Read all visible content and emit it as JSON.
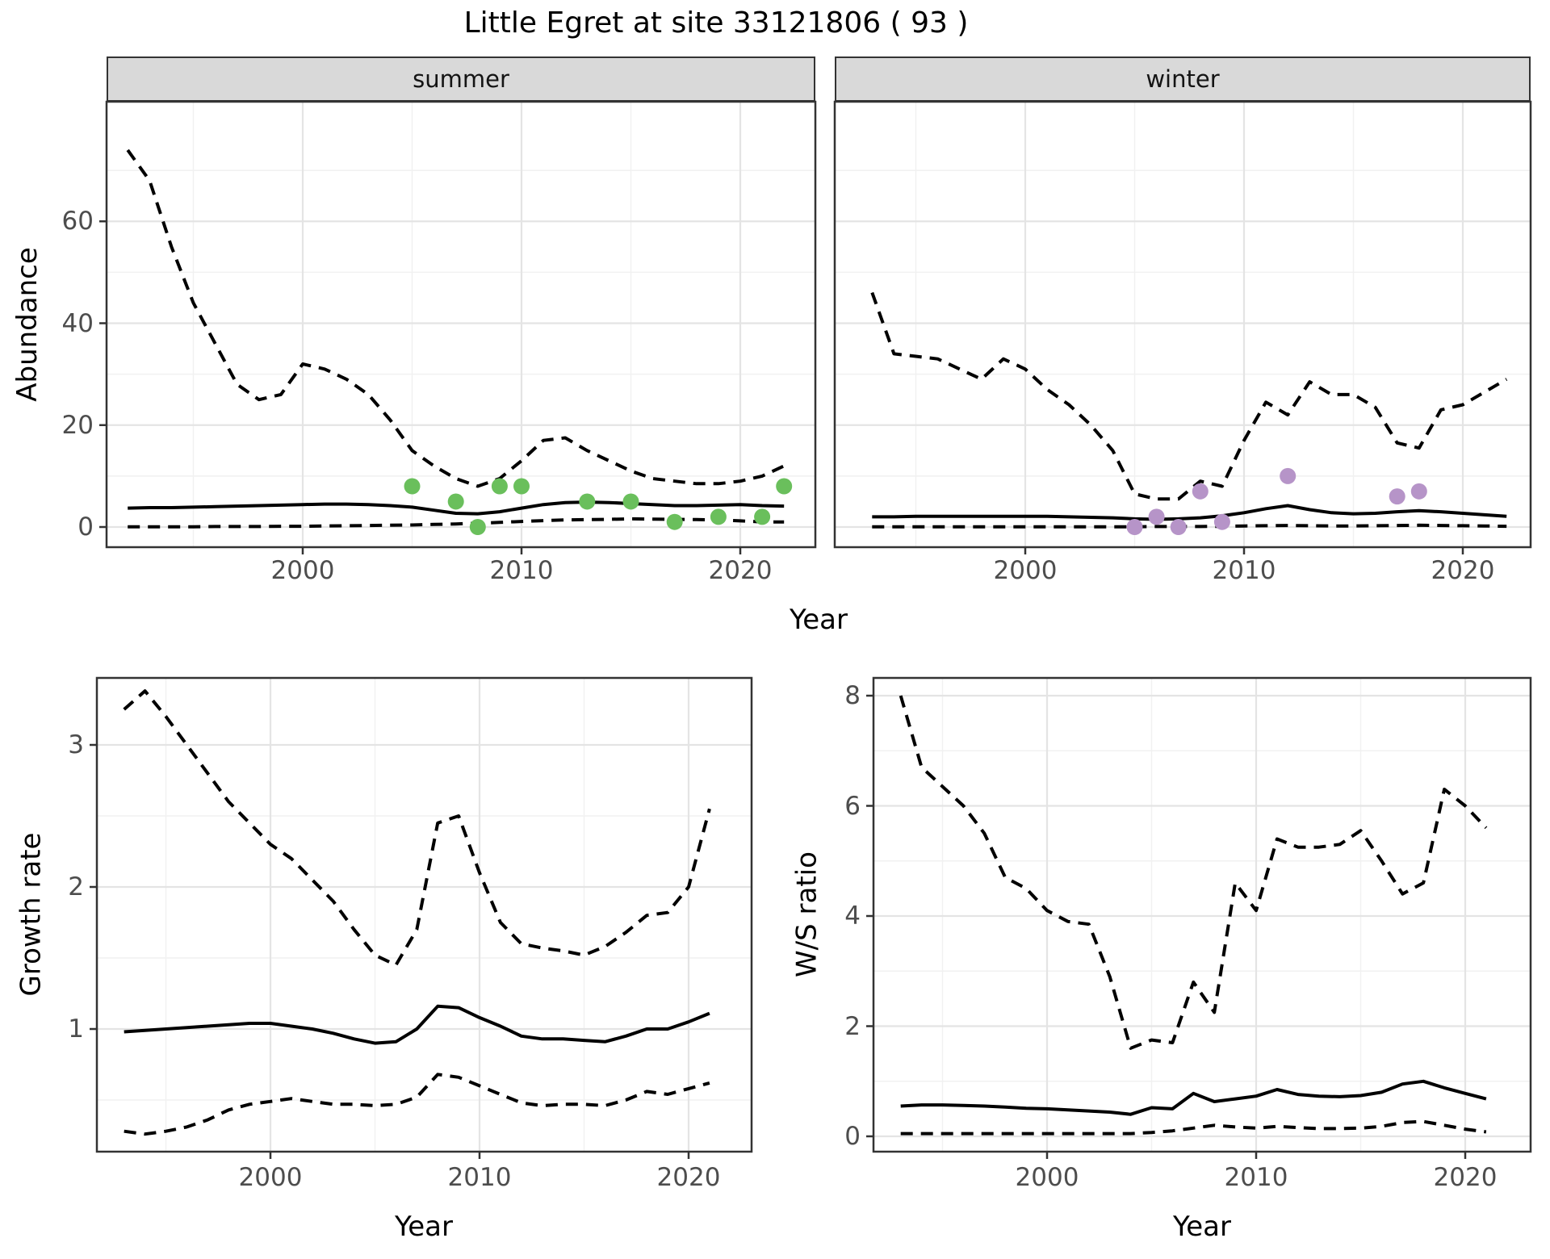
{
  "title": "Little Egret at site 33121806 ( 93 )",
  "facets": {
    "summer_label": "summer",
    "winter_label": "winter"
  },
  "axis_labels": {
    "abundance": "Abundance",
    "year": "Year",
    "growth_rate": "Growth rate",
    "ws_ratio": "W/S ratio"
  },
  "colors": {
    "summer_points": "#6abf5c",
    "winter_points": "#b694c8",
    "line": "#000000",
    "strip_bg": "#d9d9d9",
    "panel_border": "#333333",
    "grid_major": "#e4e4e4",
    "grid_minor": "#f1f1f1",
    "tick_text": "#4d4d4d"
  },
  "chart_data": [
    {
      "id": "abundance_summer",
      "type": "line",
      "facet": "summer",
      "xlabel": "Year",
      "ylabel": "Abundance",
      "xlim": [
        1991.0,
        2023.4
      ],
      "ylim": [
        -4.0,
        83.5
      ],
      "x_ticks": [
        2000,
        2010,
        2020
      ],
      "x_minor_ticks": [
        1995,
        2005,
        2015
      ],
      "y_ticks": [
        0,
        20,
        40,
        60
      ],
      "y_minor_ticks": [
        10,
        30,
        50,
        70
      ],
      "grid": true,
      "series": [
        {
          "name": "upper_95ci",
          "style": "dashed",
          "years": [
            1992,
            1993,
            1994,
            1995,
            1996,
            1997,
            1998,
            1999,
            2000,
            2001,
            2002,
            2003,
            2004,
            2005,
            2006,
            2007,
            2008,
            2009,
            2010,
            2011,
            2012,
            2013,
            2014,
            2015,
            2016,
            2017,
            2018,
            2019,
            2020,
            2021,
            2022
          ],
          "values": [
            74,
            68,
            55,
            44,
            36,
            28,
            25,
            26,
            32,
            31,
            29,
            26,
            21,
            15,
            12,
            9.5,
            8,
            9.5,
            13,
            17,
            17.5,
            15,
            13,
            11,
            9.5,
            9,
            8.5,
            8.5,
            9,
            10,
            12
          ]
        },
        {
          "name": "trend",
          "style": "solid",
          "years": [
            1992,
            1993,
            1994,
            1995,
            1996,
            1997,
            1998,
            1999,
            2000,
            2001,
            2002,
            2003,
            2004,
            2005,
            2006,
            2007,
            2008,
            2009,
            2010,
            2011,
            2012,
            2013,
            2014,
            2015,
            2016,
            2017,
            2018,
            2019,
            2020,
            2021,
            2022
          ],
          "values": [
            3.7,
            3.8,
            3.8,
            3.9,
            4.0,
            4.1,
            4.2,
            4.3,
            4.4,
            4.5,
            4.5,
            4.4,
            4.2,
            3.9,
            3.3,
            2.7,
            2.6,
            3.0,
            3.7,
            4.4,
            4.8,
            4.9,
            4.8,
            4.6,
            4.4,
            4.2,
            4.2,
            4.3,
            4.4,
            4.2,
            4.1
          ]
        },
        {
          "name": "lower_95ci",
          "style": "dashed",
          "years": [
            1992,
            1993,
            1994,
            1995,
            1996,
            1997,
            1998,
            1999,
            2000,
            2001,
            2002,
            2003,
            2004,
            2005,
            2006,
            2007,
            2008,
            2009,
            2010,
            2011,
            2012,
            2013,
            2014,
            2015,
            2016,
            2017,
            2018,
            2019,
            2020,
            2021,
            2022
          ],
          "values": [
            0.05,
            0.05,
            0.05,
            0.05,
            0.1,
            0.1,
            0.1,
            0.15,
            0.15,
            0.2,
            0.25,
            0.3,
            0.35,
            0.4,
            0.5,
            0.6,
            0.75,
            0.9,
            1.1,
            1.25,
            1.4,
            1.45,
            1.5,
            1.6,
            1.55,
            1.5,
            1.45,
            1.4,
            1.2,
            1.0,
            1.0
          ]
        }
      ],
      "points": {
        "name": "observed_counts",
        "color": "#6abf5c",
        "years": [
          2005,
          2007,
          2008,
          2009,
          2010,
          2013,
          2015,
          2017,
          2019,
          2021,
          2022
        ],
        "values": [
          8,
          5,
          0,
          8,
          8,
          5,
          5,
          1,
          2,
          2,
          8
        ]
      }
    },
    {
      "id": "abundance_winter",
      "type": "line",
      "facet": "winter",
      "xlabel": "Year",
      "ylabel": "Abundance",
      "xlim": [
        1991.3,
        2023.1
      ],
      "ylim": [
        -4.0,
        83.5
      ],
      "x_ticks": [
        2000,
        2010,
        2020
      ],
      "x_minor_ticks": [
        1995,
        2005,
        2015
      ],
      "y_ticks": [
        0,
        20,
        40,
        60
      ],
      "y_minor_ticks": [
        10,
        30,
        50,
        70
      ],
      "grid": true,
      "series": [
        {
          "name": "upper_95ci",
          "style": "dashed",
          "years": [
            1993,
            1994,
            1995,
            1996,
            1997,
            1998,
            1999,
            2000,
            2001,
            2002,
            2003,
            2004,
            2005,
            2006,
            2007,
            2008,
            2009,
            2010,
            2011,
            2012,
            2013,
            2014,
            2015,
            2016,
            2017,
            2018,
            2019,
            2020,
            2021,
            2022
          ],
          "values": [
            46,
            34,
            33.5,
            33,
            31,
            29,
            33,
            31,
            27,
            24,
            20,
            15,
            6.5,
            5.5,
            5.5,
            9,
            8,
            17,
            24.5,
            22,
            28.5,
            26,
            26,
            23.5,
            16.5,
            15.5,
            23,
            24,
            26.5,
            29
          ]
        },
        {
          "name": "trend",
          "style": "solid",
          "years": [
            1993,
            1994,
            1995,
            1996,
            1997,
            1998,
            1999,
            2000,
            2001,
            2002,
            2003,
            2004,
            2005,
            2006,
            2007,
            2008,
            2009,
            2010,
            2011,
            2012,
            2013,
            2014,
            2015,
            2016,
            2017,
            2018,
            2019,
            2020,
            2021,
            2022
          ],
          "values": [
            2.0,
            2.0,
            2.1,
            2.1,
            2.1,
            2.1,
            2.1,
            2.1,
            2.1,
            2.0,
            1.9,
            1.8,
            1.6,
            1.5,
            1.6,
            1.8,
            2.2,
            2.8,
            3.6,
            4.2,
            3.4,
            2.8,
            2.6,
            2.7,
            3.0,
            3.2,
            3.0,
            2.7,
            2.4,
            2.1
          ]
        },
        {
          "name": "lower_95ci",
          "style": "dashed",
          "years": [
            1993,
            1994,
            1995,
            1996,
            1997,
            1998,
            1999,
            2000,
            2001,
            2002,
            2003,
            2004,
            2005,
            2006,
            2007,
            2008,
            2009,
            2010,
            2011,
            2012,
            2013,
            2014,
            2015,
            2016,
            2017,
            2018,
            2019,
            2020,
            2021,
            2022
          ],
          "values": [
            0.05,
            0.05,
            0.05,
            0.05,
            0.05,
            0.05,
            0.05,
            0.05,
            0.05,
            0.05,
            0.05,
            0.05,
            0.05,
            0.1,
            0.1,
            0.1,
            0.15,
            0.2,
            0.25,
            0.3,
            0.25,
            0.2,
            0.2,
            0.25,
            0.3,
            0.35,
            0.3,
            0.25,
            0.2,
            0.15
          ]
        }
      ],
      "points": {
        "name": "observed_counts",
        "color": "#b694c8",
        "years": [
          2005,
          2006,
          2007,
          2008,
          2009,
          2012,
          2017,
          2018
        ],
        "values": [
          0,
          2,
          0,
          7,
          1,
          10,
          6,
          7
        ]
      }
    },
    {
      "id": "growth_rate",
      "type": "line",
      "facet": null,
      "xlabel": "Year",
      "ylabel": "Growth rate",
      "xlim": [
        1991.7,
        2023.0
      ],
      "ylim": [
        0.14,
        3.47
      ],
      "x_ticks": [
        2000,
        2010,
        2020
      ],
      "x_minor_ticks": [
        1995,
        2005,
        2015
      ],
      "y_ticks": [
        1,
        2,
        3
      ],
      "y_minor_ticks": [
        0.5,
        1.5,
        2.5
      ],
      "grid": true,
      "series": [
        {
          "name": "upper_95ci",
          "style": "dashed",
          "years": [
            1993,
            1994,
            1995,
            1996,
            1997,
            1998,
            1999,
            2000,
            2001,
            2002,
            2003,
            2004,
            2005,
            2006,
            2007,
            2008,
            2009,
            2010,
            2011,
            2012,
            2013,
            2014,
            2015,
            2016,
            2017,
            2018,
            2019,
            2020,
            2021
          ],
          "values": [
            3.25,
            3.38,
            3.2,
            3.0,
            2.8,
            2.6,
            2.45,
            2.3,
            2.2,
            2.05,
            1.9,
            1.7,
            1.52,
            1.45,
            1.7,
            2.45,
            2.5,
            2.1,
            1.75,
            1.6,
            1.57,
            1.55,
            1.52,
            1.58,
            1.68,
            1.8,
            1.82,
            2.0,
            2.55
          ]
        },
        {
          "name": "trend",
          "style": "solid",
          "years": [
            1993,
            1994,
            1995,
            1996,
            1997,
            1998,
            1999,
            2000,
            2001,
            2002,
            2003,
            2004,
            2005,
            2006,
            2007,
            2008,
            2009,
            2010,
            2011,
            2012,
            2013,
            2014,
            2015,
            2016,
            2017,
            2018,
            2019,
            2020,
            2021
          ],
          "values": [
            0.98,
            0.99,
            1.0,
            1.01,
            1.02,
            1.03,
            1.04,
            1.04,
            1.02,
            1.0,
            0.97,
            0.93,
            0.9,
            0.91,
            1.0,
            1.16,
            1.15,
            1.08,
            1.02,
            0.95,
            0.93,
            0.93,
            0.92,
            0.91,
            0.95,
            1.0,
            1.0,
            1.05,
            1.11
          ]
        },
        {
          "name": "lower_95ci",
          "style": "dashed",
          "years": [
            1993,
            1994,
            1995,
            1996,
            1997,
            1998,
            1999,
            2000,
            2001,
            2002,
            2003,
            2004,
            2005,
            2006,
            2007,
            2008,
            2009,
            2010,
            2011,
            2012,
            2013,
            2014,
            2015,
            2016,
            2017,
            2018,
            2019,
            2020,
            2021
          ],
          "values": [
            0.28,
            0.26,
            0.28,
            0.31,
            0.36,
            0.43,
            0.47,
            0.49,
            0.51,
            0.49,
            0.47,
            0.47,
            0.46,
            0.47,
            0.52,
            0.68,
            0.66,
            0.6,
            0.54,
            0.48,
            0.46,
            0.47,
            0.47,
            0.46,
            0.5,
            0.56,
            0.54,
            0.58,
            0.62
          ]
        }
      ],
      "points": null
    },
    {
      "id": "ws_ratio",
      "type": "line",
      "facet": null,
      "xlabel": "Year",
      "ylabel": "W/S ratio",
      "xlim": [
        1991.7,
        2023.1
      ],
      "ylim": [
        -0.28,
        8.32
      ],
      "x_ticks": [
        2000,
        2010,
        2020
      ],
      "x_minor_ticks": [
        1995,
        2005,
        2015
      ],
      "y_ticks": [
        0,
        2,
        4,
        6,
        8
      ],
      "y_minor_ticks": [
        1,
        3,
        5,
        7
      ],
      "grid": true,
      "series": [
        {
          "name": "upper_95ci",
          "style": "dashed",
          "years": [
            1993,
            1994,
            1995,
            1996,
            1997,
            1998,
            1999,
            2000,
            2001,
            2002,
            2003,
            2004,
            2005,
            2006,
            2007,
            2008,
            2009,
            2010,
            2011,
            2012,
            2013,
            2014,
            2015,
            2016,
            2017,
            2018,
            2019,
            2020,
            2021
          ],
          "values": [
            8.0,
            6.7,
            6.35,
            6.0,
            5.5,
            4.7,
            4.5,
            4.1,
            3.9,
            3.85,
            2.9,
            1.6,
            1.75,
            1.7,
            2.8,
            2.25,
            4.6,
            4.1,
            5.4,
            5.25,
            5.25,
            5.3,
            5.55,
            5.0,
            4.4,
            4.6,
            6.3,
            6.0,
            5.6
          ]
        },
        {
          "name": "trend",
          "style": "solid",
          "years": [
            1993,
            1994,
            1995,
            1996,
            1997,
            1998,
            1999,
            2000,
            2001,
            2002,
            2003,
            2004,
            2005,
            2006,
            2007,
            2008,
            2009,
            2010,
            2011,
            2012,
            2013,
            2014,
            2015,
            2016,
            2017,
            2018,
            2019,
            2020,
            2021
          ],
          "values": [
            0.55,
            0.57,
            0.57,
            0.56,
            0.55,
            0.53,
            0.51,
            0.5,
            0.48,
            0.46,
            0.44,
            0.4,
            0.52,
            0.5,
            0.78,
            0.63,
            0.68,
            0.73,
            0.85,
            0.76,
            0.73,
            0.72,
            0.74,
            0.8,
            0.95,
            1.0,
            0.88,
            0.78,
            0.68
          ]
        },
        {
          "name": "lower_95ci",
          "style": "dashed",
          "years": [
            1993,
            1994,
            1995,
            1996,
            1997,
            1998,
            1999,
            2000,
            2001,
            2002,
            2003,
            2004,
            2005,
            2006,
            2007,
            2008,
            2009,
            2010,
            2011,
            2012,
            2013,
            2014,
            2015,
            2016,
            2017,
            2018,
            2019,
            2020,
            2021
          ],
          "values": [
            0.05,
            0.05,
            0.05,
            0.05,
            0.05,
            0.05,
            0.05,
            0.05,
            0.05,
            0.05,
            0.05,
            0.05,
            0.07,
            0.1,
            0.15,
            0.2,
            0.17,
            0.15,
            0.18,
            0.16,
            0.14,
            0.14,
            0.15,
            0.18,
            0.25,
            0.27,
            0.2,
            0.13,
            0.08
          ]
        }
      ],
      "points": null
    }
  ]
}
